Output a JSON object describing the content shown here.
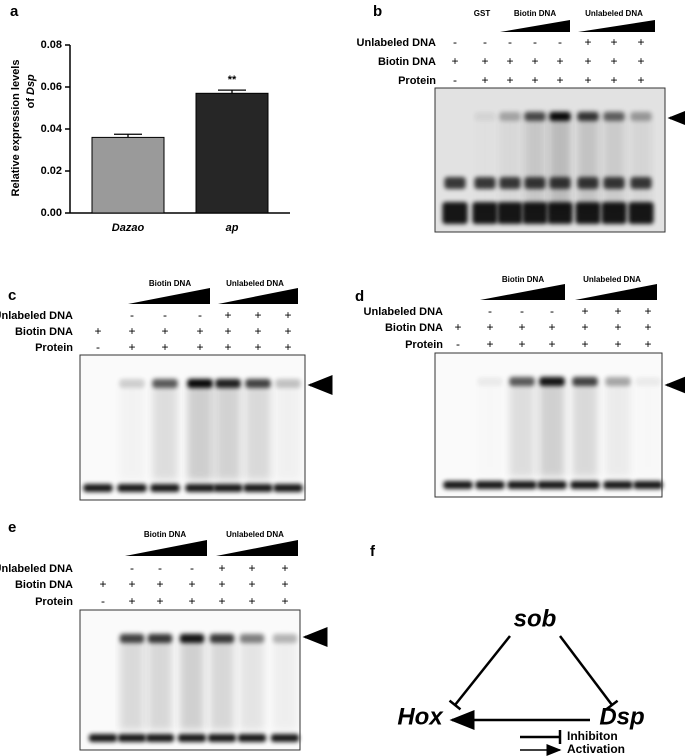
{
  "chart_data": {
    "type": "bar",
    "panel_label": "a",
    "ylabel": [
      "Relative expression levels",
      "of",
      "Dsp"
    ],
    "categories": [
      "Dazao",
      "ap"
    ],
    "values": [
      0.036,
      0.057
    ],
    "errors": [
      0.0015,
      0.0015
    ],
    "colors": [
      "#9a9a9a",
      "#262626"
    ],
    "annotations": [
      null,
      "**"
    ],
    "ylim": [
      0,
      0.08
    ],
    "yticks": [
      {
        "value": 0,
        "label": "0.00"
      },
      0.02,
      0.04,
      0.06,
      0.08
    ]
  },
  "gels": [
    {
      "label": "b",
      "headers": [
        "GST",
        "Biotin DNA",
        "Unlabeled DNA"
      ],
      "rows": [
        {
          "label": "Unlabeled DNA",
          "signs": [
            "-",
            "-",
            "-",
            "-",
            "-",
            "+",
            "+",
            "+"
          ]
        },
        {
          "label": "Biotin DNA",
          "signs": [
            "+",
            "+",
            "+",
            "+",
            "+",
            "+",
            "+",
            "+"
          ]
        },
        {
          "label": "Protein",
          "signs": [
            "-",
            "+",
            "+",
            "+",
            "+",
            "+",
            "+",
            "+"
          ]
        }
      ]
    },
    {
      "label": "c",
      "headers": [
        "Biotin DNA",
        "Unlabeled DNA"
      ],
      "rows": [
        {
          "label": "Unlabeled DNA",
          "signs": [
            null,
            "-",
            "-",
            "-",
            "+",
            "+",
            "+"
          ]
        },
        {
          "label": "Biotin DNA",
          "signs": [
            "+",
            "+",
            "+",
            "+",
            "+",
            "+",
            "+"
          ]
        },
        {
          "label": "Protein",
          "signs": [
            "-",
            "+",
            "+",
            "+",
            "+",
            "+",
            "+"
          ]
        }
      ]
    },
    {
      "label": "d",
      "headers": [
        "Biotin DNA",
        "Unlabeled DNA"
      ],
      "rows": [
        {
          "label": "Unlabeled DNA",
          "signs": [
            null,
            "-",
            "-",
            "-",
            "+",
            "+",
            "+"
          ]
        },
        {
          "label": "Biotin DNA",
          "signs": [
            "+",
            "+",
            "+",
            "+",
            "+",
            "+",
            "+"
          ]
        },
        {
          "label": "Protein",
          "signs": [
            "-",
            "+",
            "+",
            "+",
            "+",
            "+",
            "+"
          ]
        }
      ]
    },
    {
      "label": "e",
      "headers": [
        "Biotin DNA",
        "Unlabeled DNA"
      ],
      "rows": [
        {
          "label": "Unlabeled DNA",
          "signs": [
            null,
            "-",
            "-",
            "-",
            "+",
            "+",
            "+"
          ]
        },
        {
          "label": "Biotin DNA",
          "signs": [
            "+",
            "+",
            "+",
            "+",
            "+",
            "+",
            "+"
          ]
        },
        {
          "label": "Protein",
          "signs": [
            "-",
            "+",
            "+",
            "+",
            "+",
            "+",
            "+"
          ]
        }
      ]
    }
  ],
  "diagram": {
    "label": "f",
    "nodes": [
      "sob",
      "Hox",
      "Dsp"
    ],
    "legend": [
      "Inhibiton",
      "Activation"
    ]
  }
}
